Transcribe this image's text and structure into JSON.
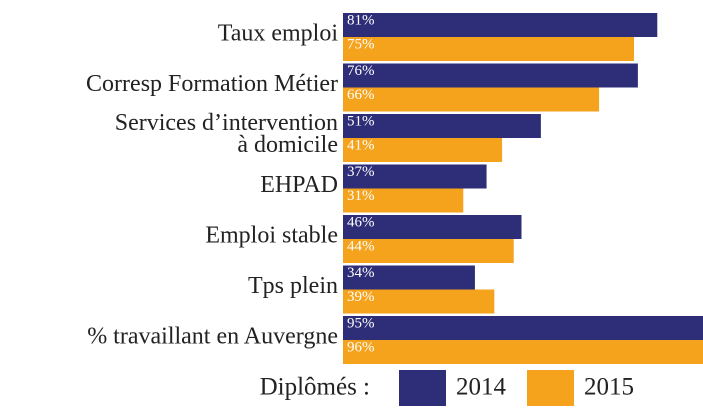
{
  "chart_data": {
    "type": "bar",
    "orientation": "horizontal",
    "categories": [
      "Taux emploi",
      "Corresp Formation Métier",
      "Services d’intervention\nà domicile",
      "EHPAD",
      "Emploi stable",
      "Tps plein",
      "% travaillant en Auvergne"
    ],
    "series": [
      {
        "name": "2014",
        "color": "#2e2d78",
        "values": [
          81,
          76,
          51,
          37,
          46,
          34,
          95
        ],
        "value_labels": [
          "81%",
          "76%",
          "51%",
          "37%",
          "46%",
          "34%",
          "95%"
        ]
      },
      {
        "name": "2015",
        "color": "#f5a21c",
        "values": [
          75,
          66,
          41,
          31,
          44,
          39,
          96
        ],
        "value_labels": [
          "75%",
          "66%",
          "41%",
          "31%",
          "44%",
          "39%",
          "96%"
        ]
      }
    ],
    "legend_title": "Diplômés :"
  }
}
